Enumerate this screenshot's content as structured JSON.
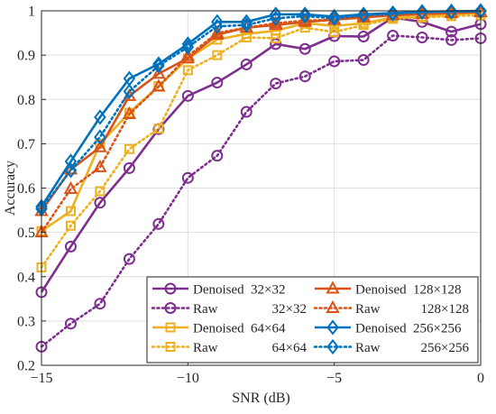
{
  "chart_data": {
    "type": "line",
    "title": "",
    "xlabel": "SNR (dB)",
    "ylabel": "Accuracy",
    "xlim": [
      -15,
      0
    ],
    "ylim": [
      0.2,
      1.0
    ],
    "xticks": [
      -15,
      -10,
      -5,
      0
    ],
    "xtick_labels": [
      "−15",
      "−10",
      "−5",
      "0"
    ],
    "yticks": [
      0.2,
      0.3,
      0.4,
      0.5,
      0.6,
      0.7,
      0.8,
      0.9,
      1.0
    ],
    "ytick_labels": [
      "0.2",
      "0.3",
      "0.4",
      "0.5",
      "0.6",
      "0.7",
      "0.8",
      "0.9",
      "1"
    ],
    "grid": true,
    "legend_position": "bottom-right",
    "x": [
      -15,
      -14,
      -13,
      -12,
      -11,
      -10,
      -9,
      -8,
      -7,
      -6,
      -5,
      -4,
      -3,
      -2,
      -1,
      0
    ],
    "series": [
      {
        "label_type": "Denoised",
        "label_size": "32×32",
        "color": "#7E2F8E",
        "dash": "solid",
        "marker": "circle",
        "values": [
          0.365,
          0.468,
          0.567,
          0.645,
          0.733,
          0.808,
          0.838,
          0.879,
          0.925,
          0.914,
          0.943,
          0.942,
          0.985,
          0.975,
          0.953,
          0.97
        ]
      },
      {
        "label_type": "Raw",
        "label_size": "32×32",
        "color": "#7E2F8E",
        "dash": "dotted",
        "marker": "circle",
        "values": [
          0.242,
          0.294,
          0.339,
          0.44,
          0.519,
          0.623,
          0.673,
          0.772,
          0.836,
          0.852,
          0.886,
          0.889,
          0.944,
          0.94,
          0.934,
          0.938
        ]
      },
      {
        "label_type": "Denoised",
        "label_size": "64×64",
        "color": "#EDB120",
        "dash": "solid",
        "marker": "square",
        "values": [
          0.503,
          0.548,
          0.7,
          0.77,
          0.83,
          0.892,
          0.935,
          0.948,
          0.955,
          0.972,
          0.966,
          0.972,
          0.985,
          0.987,
          0.992,
          0.995
        ]
      },
      {
        "label_type": "Raw",
        "label_size": "64×64",
        "color": "#EDB120",
        "dash": "dotted",
        "marker": "square",
        "values": [
          0.421,
          0.515,
          0.593,
          0.688,
          0.734,
          0.866,
          0.9,
          0.94,
          0.938,
          0.962,
          0.952,
          0.968,
          0.982,
          0.985,
          0.988,
          0.99
        ]
      },
      {
        "label_type": "Denoised",
        "label_size": "128×128",
        "color": "#D95319",
        "dash": "solid",
        "marker": "triangle",
        "values": [
          0.548,
          0.642,
          0.692,
          0.808,
          0.858,
          0.893,
          0.946,
          0.962,
          0.968,
          0.975,
          0.98,
          0.985,
          0.99,
          0.993,
          0.995,
          0.997
        ]
      },
      {
        "label_type": "Raw",
        "label_size": "128×128",
        "color": "#D95319",
        "dash": "dotted",
        "marker": "triangle",
        "values": [
          0.5,
          0.598,
          0.647,
          0.767,
          0.829,
          0.898,
          0.95,
          0.962,
          0.972,
          0.978,
          0.98,
          0.988,
          0.99,
          0.993,
          0.995,
          0.997
        ]
      },
      {
        "label_type": "Denoised",
        "label_size": "256×256",
        "color": "#0072BD",
        "dash": "solid",
        "marker": "diamond",
        "values": [
          0.558,
          0.66,
          0.76,
          0.847,
          0.88,
          0.925,
          0.975,
          0.975,
          0.992,
          0.992,
          0.987,
          0.992,
          0.995,
          0.998,
          0.999,
          1.0
        ]
      },
      {
        "label_type": "Raw",
        "label_size": "256×256",
        "color": "#0072BD",
        "dash": "dotted",
        "marker": "diamond",
        "values": [
          0.553,
          0.64,
          0.715,
          0.818,
          0.876,
          0.918,
          0.965,
          0.968,
          0.983,
          0.988,
          0.983,
          0.99,
          0.993,
          0.997,
          0.998,
          0.999
        ]
      }
    ]
  }
}
